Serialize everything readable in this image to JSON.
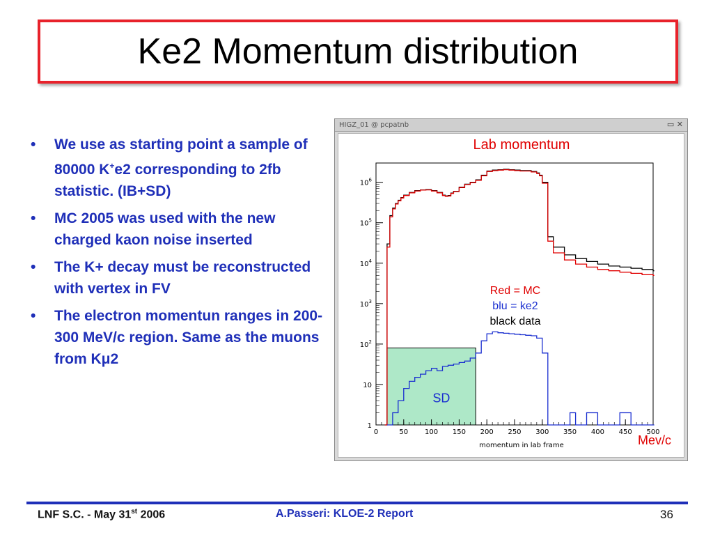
{
  "slide": {
    "title": "Ke2 Momentum distribution",
    "bullets": [
      {
        "pre": "We use as starting point a sample of 80000 K",
        "sup": "+",
        "post": "e2 corresponding to 2fb statistic. (IB+SD)"
      },
      {
        "pre": "MC 2005 was used with the new charged kaon noise inserted",
        "sup": "",
        "post": ""
      },
      {
        "pre": "The K+ decay must be reconstructed with vertex in FV",
        "sup": "",
        "post": ""
      },
      {
        "pre": "The electron momentun ranges in 200-300 MeV/c region. Same as the muons from K",
        "sup": "",
        "post": "μ2"
      }
    ],
    "bullet_char": "•"
  },
  "window": {
    "title": "HIGZ_01 @ pcpatnb",
    "buttons": "▭ ✕"
  },
  "chart_data": {
    "type": "line",
    "title": "Lab momentum",
    "xlabel": "momentum in lab frame",
    "unit_label": "Mev/c",
    "xlim": [
      0,
      500
    ],
    "ylim": [
      1,
      3000000
    ],
    "log_y": true,
    "x_ticks": [
      "0",
      "50",
      "100",
      "150",
      "200",
      "250",
      "300",
      "350",
      "400",
      "450",
      "500"
    ],
    "y_ticks": [
      {
        "base": "1",
        "exp": ""
      },
      {
        "base": "10",
        "exp": ""
      },
      {
        "base": "10",
        "exp": "2"
      },
      {
        "base": "10",
        "exp": "3"
      },
      {
        "base": "10",
        "exp": "4"
      },
      {
        "base": "10",
        "exp": "5"
      },
      {
        "base": "10",
        "exp": "6"
      }
    ],
    "legend": [
      "Red = MC",
      "blu = ke2",
      "black data"
    ],
    "legend_colors": [
      "#e00000",
      "#1a2fd0",
      "#000000"
    ],
    "annotation": "SD",
    "sd_range": [
      20,
      180
    ],
    "series": [
      {
        "color": "#000000",
        "x": [
          16,
          20,
          25,
          30,
          35,
          40,
          45,
          50,
          60,
          70,
          80,
          90,
          100,
          110,
          120,
          125,
          130,
          135,
          140,
          150,
          160,
          170,
          180,
          190,
          200,
          210,
          220,
          230,
          240,
          250,
          260,
          270,
          280,
          290,
          295,
          300,
          310,
          320,
          340,
          360,
          380,
          400,
          420,
          440,
          460,
          480,
          500
        ],
        "y": [
          1,
          30000,
          150000,
          230000,
          300000,
          360000,
          420000,
          480000,
          560000,
          620000,
          650000,
          660000,
          620000,
          560000,
          480000,
          460000,
          470000,
          540000,
          600000,
          760000,
          900000,
          1000000,
          1150000,
          1500000,
          1900000,
          2000000,
          2050000,
          2100000,
          2050000,
          2000000,
          1950000,
          1950000,
          1850000,
          1700000,
          1500000,
          1000000,
          45000,
          25000,
          16000,
          13000,
          11000,
          9500,
          8500,
          8000,
          7500,
          7000,
          6500
        ]
      },
      {
        "color": "#e00000",
        "x": [
          16,
          20,
          25,
          30,
          35,
          40,
          45,
          50,
          60,
          70,
          80,
          90,
          100,
          110,
          120,
          125,
          130,
          135,
          140,
          150,
          160,
          170,
          180,
          190,
          200,
          210,
          220,
          230,
          240,
          250,
          260,
          270,
          280,
          290,
          295,
          300,
          310,
          320,
          340,
          360,
          380,
          400,
          420,
          440,
          460,
          480,
          500
        ],
        "y": [
          1,
          25000,
          140000,
          220000,
          290000,
          350000,
          410000,
          470000,
          550000,
          610000,
          640000,
          650000,
          610000,
          550000,
          470000,
          450000,
          460000,
          530000,
          590000,
          740000,
          880000,
          980000,
          1120000,
          1450000,
          1850000,
          1950000,
          2000000,
          2050000,
          2000000,
          1950000,
          1900000,
          1900000,
          1800000,
          1650000,
          1450000,
          950000,
          35000,
          18000,
          12000,
          9500,
          8000,
          7000,
          6500,
          6000,
          5600,
          5200,
          5000
        ]
      },
      {
        "color": "#1a2fd0",
        "x": [
          20,
          30,
          40,
          50,
          60,
          70,
          80,
          90,
          100,
          110,
          120,
          130,
          140,
          150,
          160,
          170,
          180,
          190,
          200,
          210,
          220,
          230,
          240,
          250,
          260,
          270,
          280,
          290,
          300,
          310,
          320,
          330,
          340,
          350,
          360,
          380,
          400,
          420,
          440,
          460,
          480,
          500
        ],
        "y": [
          1,
          2,
          4,
          8,
          12,
          15,
          18,
          22,
          25,
          22,
          28,
          30,
          32,
          35,
          38,
          45,
          60,
          120,
          180,
          200,
          190,
          185,
          180,
          175,
          170,
          165,
          160,
          140,
          60,
          1,
          1,
          1,
          1,
          2,
          1,
          2,
          1,
          1,
          2,
          1,
          1,
          1
        ]
      }
    ]
  },
  "footer": {
    "left_pre": "LNF S.C. - May 31",
    "left_sup": "st",
    "left_post": " 2006",
    "center": "A.Passeri: KLOE-2 Report",
    "page_number": "36"
  }
}
